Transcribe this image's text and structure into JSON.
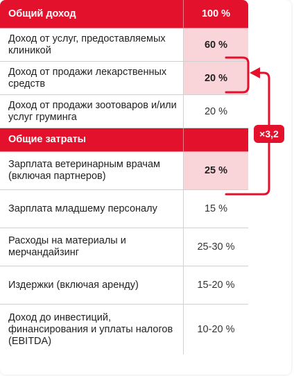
{
  "rows": [
    {
      "label": "Общий доход",
      "value": "100 %",
      "type": "header",
      "height": 41
    },
    {
      "label": "Доход от услуг, предоставляемых клиникой",
      "value": "60 %",
      "type": "highlight",
      "height": 48
    },
    {
      "label": "Доход от продажи лекарственных средств",
      "value": "20 %",
      "type": "highlight",
      "height": 48
    },
    {
      "label": "Доход от продажи зоотоваров и/или услуг груминга",
      "value": "20 %",
      "type": "normal",
      "height": 48
    },
    {
      "label": "Общие затраты",
      "value": "",
      "type": "header",
      "height": 34
    },
    {
      "label": "Зарплата ветеринарным врачам (включая партнеров)",
      "value": "25 %",
      "type": "highlight",
      "height": 55
    },
    {
      "label": "Зарплата младшему персоналу",
      "value": "15 %",
      "type": "normal",
      "height": 55
    },
    {
      "label": "Расходы на материалы и мерчандайзинг",
      "value": "25-30 %",
      "type": "normal",
      "height": 55
    },
    {
      "label": "Издержки (включая аренду)",
      "value": "15-20 %",
      "type": "normal",
      "height": 55
    },
    {
      "label": "Доход до инвестиций, финансирования и уплаты налогов (EBITDA)",
      "value": "10-20 %",
      "type": "normal",
      "height": 72
    }
  ],
  "annotation": {
    "multiplier": "×3,2"
  },
  "colors": {
    "accent": "#e4112d",
    "highlight": "#f9d4d9"
  }
}
